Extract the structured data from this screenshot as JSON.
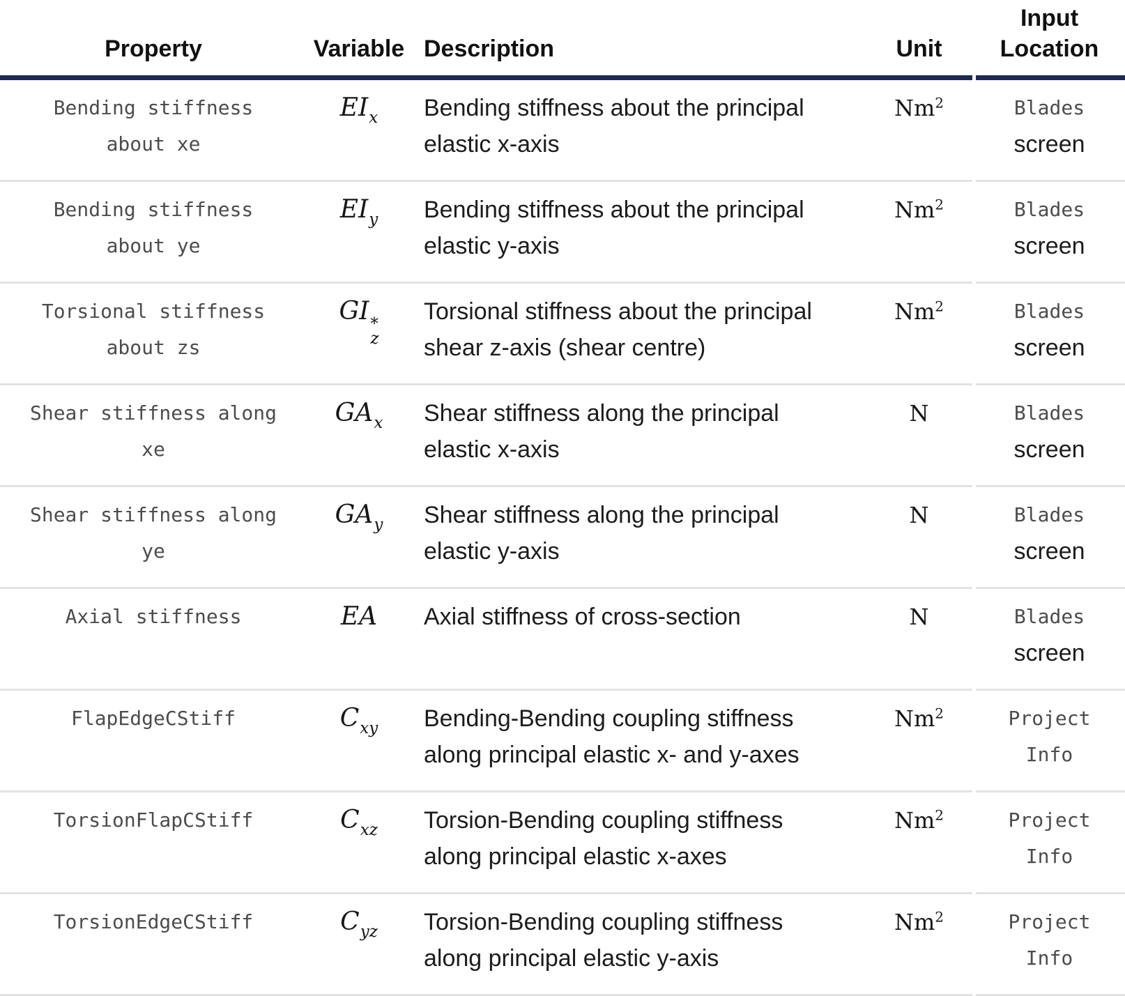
{
  "colors": {
    "header_rule": "#1e2a52",
    "row_divider": "#e3e3e3",
    "code_text": "#4c4c4c",
    "body_text": "#1c1c1c"
  },
  "table": {
    "headers": [
      "Property",
      "Variable",
      "Description",
      "Unit",
      "Input\nLocation"
    ],
    "rows": [
      {
        "property": "Bending stiffness\nabout xe",
        "variable": {
          "base": "EI",
          "sup": "",
          "sub": "x"
        },
        "description": "Bending stiffness about the principal\nelastic x-axis",
        "unit": {
          "base": "Nm",
          "sup": "2"
        },
        "input_location": [
          {
            "text": "Blades",
            "style": "code"
          },
          {
            "text": "screen",
            "style": "plain"
          }
        ]
      },
      {
        "property": "Bending stiffness\nabout ye",
        "variable": {
          "base": "EI",
          "sup": "",
          "sub": "y"
        },
        "description": "Bending stiffness about the principal\nelastic y-axis",
        "unit": {
          "base": "Nm",
          "sup": "2"
        },
        "input_location": [
          {
            "text": "Blades",
            "style": "code"
          },
          {
            "text": "screen",
            "style": "plain"
          }
        ]
      },
      {
        "property": "Torsional stiffness\nabout zs",
        "variable": {
          "base": "GI",
          "sup": "*",
          "sub": "z"
        },
        "description": "Torsional stiffness about the principal\nshear z-axis (shear centre)",
        "unit": {
          "base": "Nm",
          "sup": "2"
        },
        "input_location": [
          {
            "text": "Blades",
            "style": "code"
          },
          {
            "text": "screen",
            "style": "plain"
          }
        ]
      },
      {
        "property": "Shear stiffness along\nxe",
        "variable": {
          "base": "GA",
          "sup": "",
          "sub": "x"
        },
        "description": "Shear stiffness along the principal\nelastic x-axis",
        "unit": {
          "base": "N",
          "sup": ""
        },
        "input_location": [
          {
            "text": "Blades",
            "style": "code"
          },
          {
            "text": "screen",
            "style": "plain"
          }
        ]
      },
      {
        "property": "Shear stiffness along\nye",
        "variable": {
          "base": "GA",
          "sup": "",
          "sub": "y"
        },
        "description": "Shear stiffness along the principal\nelastic y-axis",
        "unit": {
          "base": "N",
          "sup": ""
        },
        "input_location": [
          {
            "text": "Blades",
            "style": "code"
          },
          {
            "text": "screen",
            "style": "plain"
          }
        ]
      },
      {
        "property": "Axial stiffness",
        "variable": {
          "base": "EA",
          "sup": "",
          "sub": ""
        },
        "description": "Axial stiffness of cross-section",
        "unit": {
          "base": "N",
          "sup": ""
        },
        "input_location": [
          {
            "text": "Blades",
            "style": "code"
          },
          {
            "text": "screen",
            "style": "plain"
          }
        ]
      },
      {
        "property": "FlapEdgeCStiff",
        "variable": {
          "base": "C",
          "sup": "",
          "sub": "xy"
        },
        "description": "Bending-Bending coupling stiffness\nalong principal elastic x- and y-axes",
        "unit": {
          "base": "Nm",
          "sup": "2"
        },
        "input_location": [
          {
            "text": "Project",
            "style": "code"
          },
          {
            "text": "Info",
            "style": "code"
          }
        ]
      },
      {
        "property": "TorsionFlapCStiff",
        "variable": {
          "base": "C",
          "sup": "",
          "sub": "xz"
        },
        "description": "Torsion-Bending coupling stiffness\nalong principal elastic x-axes",
        "unit": {
          "base": "Nm",
          "sup": "2"
        },
        "input_location": [
          {
            "text": "Project",
            "style": "code"
          },
          {
            "text": "Info",
            "style": "code"
          }
        ]
      },
      {
        "property": "TorsionEdgeCStiff",
        "variable": {
          "base": "C",
          "sup": "",
          "sub": "yz"
        },
        "description": "Torsion-Bending coupling stiffness\nalong principal elastic y-axis",
        "unit": {
          "base": "Nm",
          "sup": "2"
        },
        "input_location": [
          {
            "text": "Project",
            "style": "code"
          },
          {
            "text": "Info",
            "style": "code"
          }
        ]
      }
    ]
  }
}
